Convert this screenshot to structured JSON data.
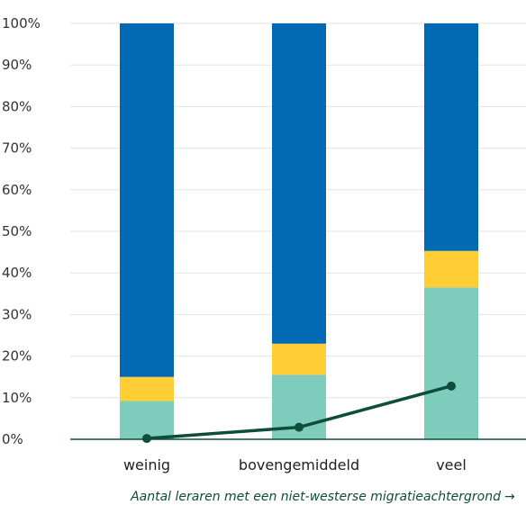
{
  "chart_data": {
    "type": "bar",
    "stacked": true,
    "categories": [
      "weinig",
      "bovengemiddeld",
      "veel"
    ],
    "series": [
      {
        "values": [
          9.2,
          15.5,
          36.5
        ],
        "color": "#7ecdbc"
      },
      {
        "values": [
          5.8,
          7.5,
          8.8
        ],
        "color": "#ffcd34"
      },
      {
        "values": [
          85.0,
          77.0,
          54.7
        ],
        "color": "#0069b4"
      }
    ],
    "line": {
      "values": [
        0.2,
        2.9,
        12.8
      ],
      "color": "#0d4d3a"
    },
    "ylim": [
      0,
      100
    ],
    "yticks": [
      "0%",
      "10%",
      "20%",
      "30%",
      "40%",
      "50%",
      "60%",
      "70%",
      "80%",
      "90%",
      "100%"
    ],
    "xlabel": "Aantal leraren met een niet-westerse migratieachtergrond",
    "xlabel_arrow": "→",
    "grid": true
  }
}
